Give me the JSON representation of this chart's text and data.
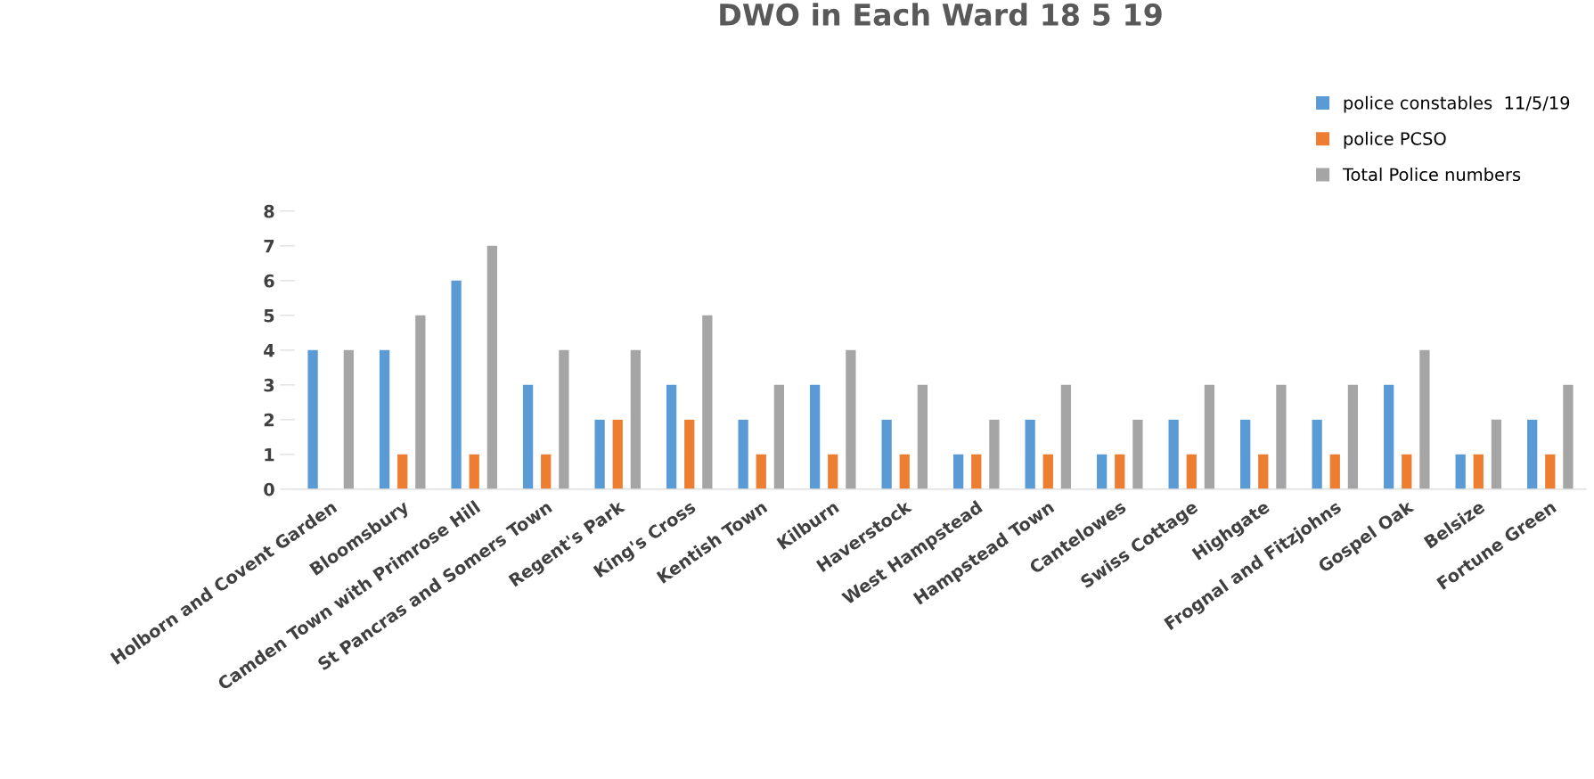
{
  "chart_data": {
    "type": "bar",
    "title": "DWO in Each Ward 18 5 19",
    "categories": [
      "Holborn and Covent Garden",
      "Bloomsbury",
      "Camden Town with Primrose Hill",
      "St Pancras and Somers Town",
      "Regent's Park",
      "King's Cross",
      "Kentish Town",
      "Kilburn",
      "Haverstock",
      "West Hampstead",
      "Hampstead Town",
      "Cantelowes",
      "Swiss Cottage",
      "Highgate",
      "Frognal and Fitzjohns",
      "Gospel Oak",
      "Belsize",
      "Fortune Green"
    ],
    "series": [
      {
        "name": "police constables  11/5/19",
        "color": "#5b9bd5",
        "values": [
          4,
          4,
          6,
          3,
          2,
          3,
          2,
          3,
          2,
          1,
          2,
          1,
          2,
          2,
          2,
          3,
          1,
          2
        ]
      },
      {
        "name": "police PCSO",
        "color": "#ed7d31",
        "values": [
          0,
          1,
          1,
          1,
          2,
          2,
          1,
          1,
          1,
          1,
          1,
          1,
          1,
          1,
          1,
          1,
          1,
          1
        ]
      },
      {
        "name": "Total Police numbers",
        "color": "#a5a5a5",
        "values": [
          4,
          5,
          7,
          4,
          4,
          5,
          3,
          4,
          3,
          2,
          3,
          2,
          3,
          3,
          3,
          4,
          2,
          3
        ]
      }
    ],
    "ylim": [
      0,
      8
    ],
    "yticks": [
      0,
      1,
      2,
      3,
      4,
      5,
      6,
      7,
      8
    ],
    "grid": false,
    "legend": "top right"
  }
}
